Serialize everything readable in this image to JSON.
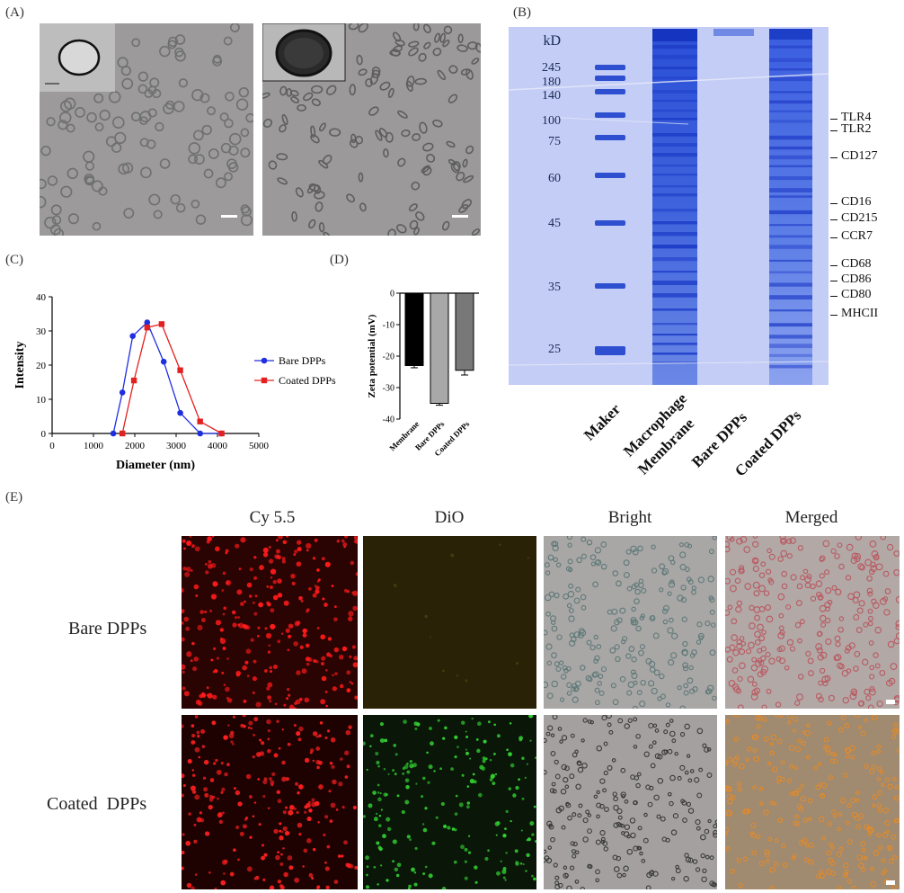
{
  "panels": {
    "A": "(A)",
    "B": "(B)",
    "C": "(C)",
    "D": "(D)",
    "E": "(E)"
  },
  "gel": {
    "kd_unit": "kD",
    "ladder": [
      "245",
      "180",
      "140",
      "100",
      "75",
      "60",
      "45",
      "35",
      "25"
    ],
    "markers": [
      "TLR4",
      "TLR2",
      "CD127",
      "CD16",
      "CD215",
      "CCR7",
      "CD68",
      "CD86",
      "CD80",
      "MHCII"
    ],
    "lanes": {
      "maker": "Maker",
      "macrophage_1": "Macrophage",
      "macrophage_2": "Membrane",
      "bare": "Bare DPPs",
      "coated": "Coated DPPs"
    }
  },
  "fluor": {
    "columns": [
      "Cy 5.5",
      "DiO",
      "Bright",
      "Merged"
    ],
    "rows": [
      "Bare DPPs",
      "Coated  DPPs"
    ]
  },
  "chart_data": [
    {
      "type": "line",
      "xlabel": "Diameter (nm)",
      "ylabel": "Intensity",
      "xlim": [
        0,
        5000
      ],
      "ylim": [
        0,
        40
      ],
      "x_ticks": [
        "0",
        "1000",
        "2000",
        "3000",
        "4000",
        "5000"
      ],
      "y_ticks": [
        "0",
        "10",
        "20",
        "30",
        "40"
      ],
      "legend_position": "right",
      "series": [
        {
          "name": "Bare DPPs",
          "color": "#1f2fe0",
          "marker": "circle",
          "x": [
            1480,
            1700,
            1950,
            2300,
            2700,
            3100,
            3580,
            4100
          ],
          "y": [
            0,
            12,
            28.5,
            32.5,
            21,
            6,
            0,
            0
          ]
        },
        {
          "name": "Coated DPPs",
          "color": "#e32020",
          "marker": "square",
          "x": [
            1700,
            1980,
            2300,
            2650,
            3100,
            3580,
            4100
          ],
          "y": [
            0,
            15.5,
            31,
            32,
            18.5,
            3.5,
            0
          ]
        }
      ]
    },
    {
      "type": "bar",
      "ylabel": "Zeta potential (mV)",
      "categories": [
        "Membrane",
        "Bare DPPs",
        "Coated DPPs"
      ],
      "values": [
        -23,
        -35,
        -24.5
      ],
      "errors": [
        0.7,
        0.6,
        1.5
      ],
      "colors": [
        "#000000",
        "#a8a8a8",
        "#787878"
      ],
      "ylim": [
        -40,
        0
      ],
      "y_ticks": [
        "0",
        "-10",
        "-20",
        "-30",
        "-40"
      ]
    }
  ]
}
